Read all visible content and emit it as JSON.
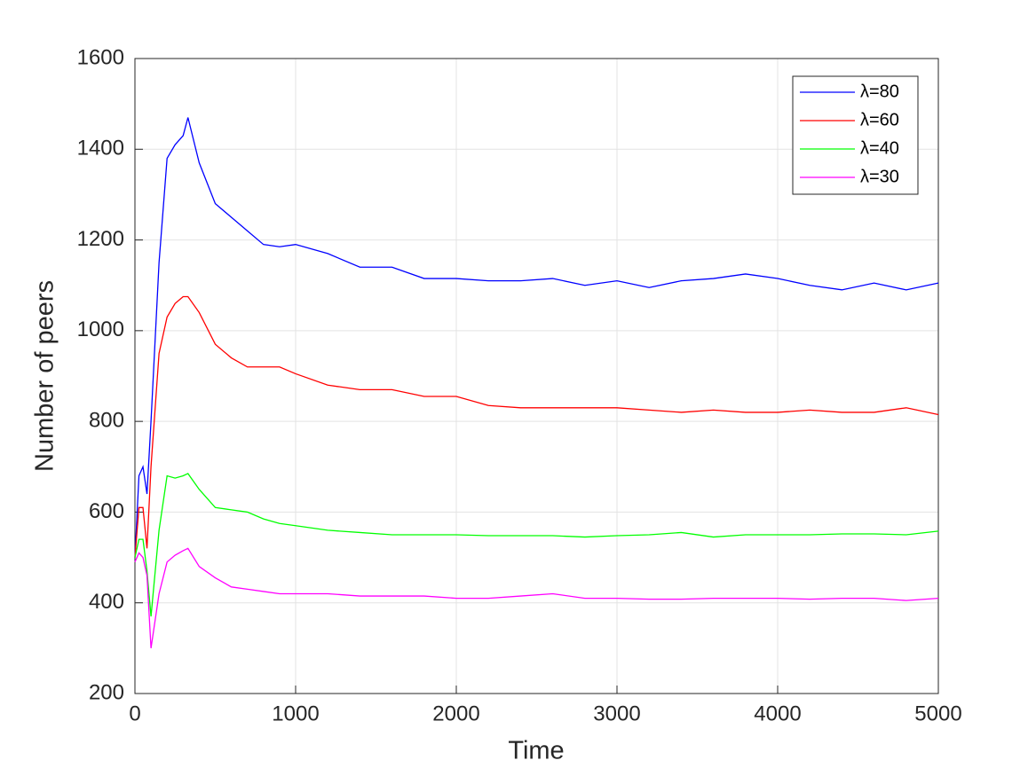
{
  "chart_data": {
    "type": "line",
    "xlabel": "Time",
    "ylabel": "Number of peers",
    "x": [
      0,
      25,
      50,
      75,
      100,
      150,
      200,
      250,
      300,
      330,
      400,
      500,
      600,
      700,
      800,
      900,
      1000,
      1200,
      1400,
      1600,
      1800,
      2000,
      2200,
      2400,
      2600,
      2800,
      3000,
      3200,
      3400,
      3600,
      3800,
      4000,
      4200,
      4400,
      4600,
      4800,
      5000
    ],
    "series": [
      {
        "name": "λ=80",
        "color": "#0000ff",
        "values": [
          500,
          680,
          700,
          640,
          800,
          1150,
          1380,
          1410,
          1430,
          1470,
          1370,
          1280,
          1250,
          1220,
          1190,
          1185,
          1190,
          1170,
          1140,
          1140,
          1115,
          1115,
          1110,
          1110,
          1115,
          1100,
          1110,
          1095,
          1110,
          1115,
          1125,
          1115,
          1100,
          1090,
          1105,
          1090,
          1105
        ]
      },
      {
        "name": "λ=60",
        "color": "#ff0000",
        "values": [
          500,
          610,
          610,
          520,
          700,
          950,
          1030,
          1060,
          1075,
          1075,
          1040,
          970,
          940,
          920,
          920,
          920,
          905,
          880,
          870,
          870,
          855,
          855,
          835,
          830,
          830,
          830,
          830,
          825,
          820,
          825,
          820,
          820,
          825,
          820,
          820,
          830,
          815
        ]
      },
      {
        "name": "λ=40",
        "color": "#00ff00",
        "values": [
          500,
          540,
          540,
          470,
          370,
          560,
          680,
          675,
          680,
          685,
          650,
          610,
          605,
          600,
          585,
          575,
          570,
          560,
          555,
          550,
          550,
          550,
          548,
          548,
          548,
          545,
          548,
          550,
          555,
          545,
          550,
          550,
          550,
          552,
          552,
          550,
          558
        ]
      },
      {
        "name": "λ=30",
        "color": "#ff00ff",
        "values": [
          490,
          510,
          500,
          460,
          300,
          420,
          490,
          505,
          515,
          520,
          480,
          455,
          435,
          430,
          425,
          420,
          420,
          420,
          415,
          415,
          415,
          410,
          410,
          415,
          420,
          410,
          410,
          408,
          408,
          410,
          410,
          410,
          408,
          410,
          410,
          405,
          410
        ]
      }
    ],
    "xlim": [
      0,
      5000
    ],
    "xticks": [
      0,
      1000,
      2000,
      3000,
      4000,
      5000
    ],
    "ylim": [
      200,
      1600
    ],
    "yticks": [
      200,
      400,
      600,
      800,
      1000,
      1200,
      1400,
      1600
    ],
    "grid": true,
    "legend": "northeast"
  }
}
